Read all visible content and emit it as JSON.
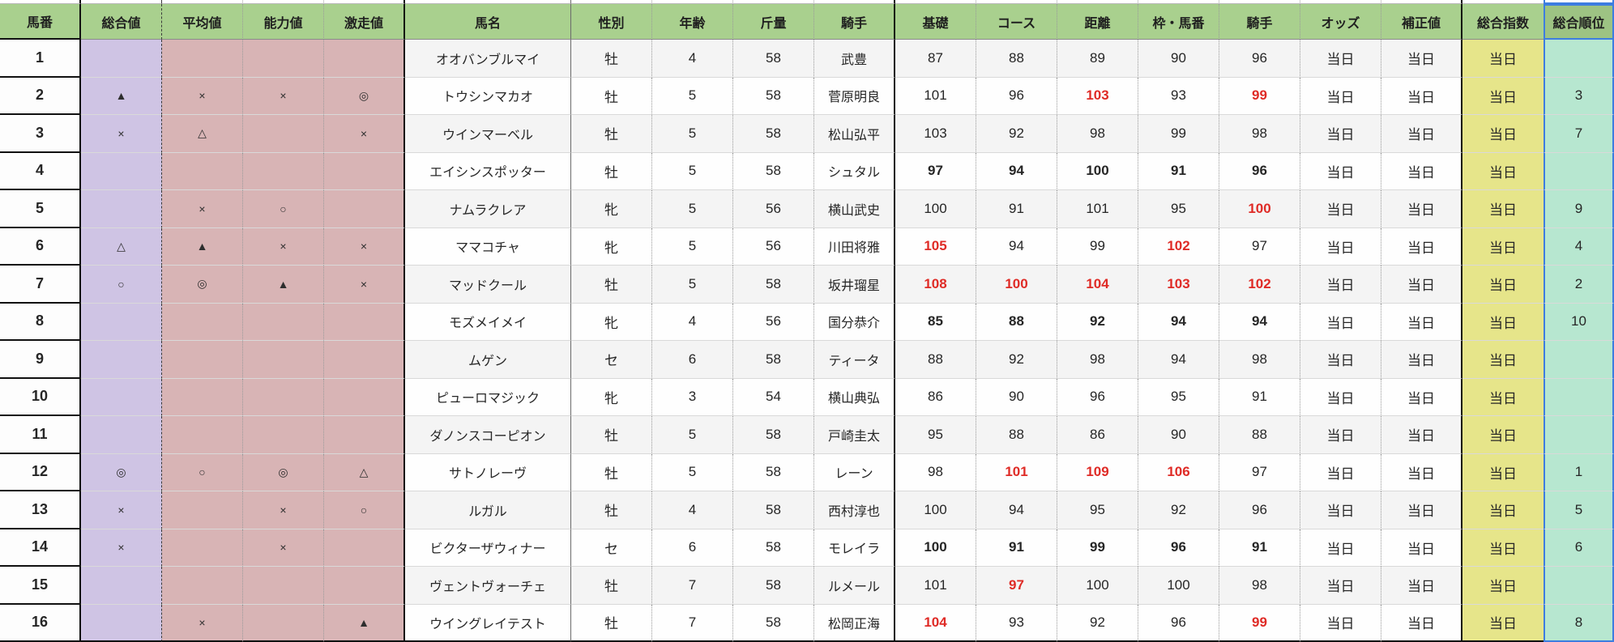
{
  "app": {
    "type": "spreadsheet-horse-racing-rating-table"
  },
  "colors": {
    "header_green": "#a9d08e",
    "selected_header_green": "#9dc383",
    "overall_mark_purple": "#cfc4e4",
    "mark_pink": "#d8b4b5",
    "index_yellow": "#e6e58a",
    "rank_teal": "#b7e7d0",
    "highlight_red": "#df2b26",
    "selection_blue": "#3d7de0"
  },
  "table": {
    "columns": [
      {
        "id": "horse-number",
        "label": "馬番"
      },
      {
        "id": "overall-mark",
        "label": "総合値"
      },
      {
        "id": "average-mark",
        "label": "平均値"
      },
      {
        "id": "ability-mark",
        "label": "能力値"
      },
      {
        "id": "surge-mark",
        "label": "激走値"
      },
      {
        "id": "horse-name",
        "label": "馬名"
      },
      {
        "id": "sex",
        "label": "性別"
      },
      {
        "id": "age",
        "label": "年齢"
      },
      {
        "id": "weight",
        "label": "斤量"
      },
      {
        "id": "jockey",
        "label": "騎手"
      },
      {
        "id": "base-score",
        "label": "基礎"
      },
      {
        "id": "course-score",
        "label": "コース"
      },
      {
        "id": "distance-score",
        "label": "距離"
      },
      {
        "id": "frame-score",
        "label": "枠・馬番"
      },
      {
        "id": "jockey-score",
        "label": "騎手"
      },
      {
        "id": "odds",
        "label": "オッズ"
      },
      {
        "id": "correction",
        "label": "補正値"
      },
      {
        "id": "total-index",
        "label": "総合指数"
      },
      {
        "id": "total-rank",
        "label": "総合順位"
      }
    ],
    "rows": [
      {
        "num": "1",
        "marks": [
          "",
          "",
          "",
          ""
        ],
        "name": "オオバンブルマイ",
        "sex": "牡",
        "age": "4",
        "weight": "58",
        "jockey": "武豊",
        "scores": [
          "87",
          "88",
          "89",
          "90",
          "96"
        ],
        "score_styles": [
          "",
          "",
          "",
          "",
          ""
        ],
        "odds": "当日",
        "correction": "当日",
        "index": "当日",
        "rank": ""
      },
      {
        "num": "2",
        "marks": [
          "▲",
          "×",
          "×",
          "◎"
        ],
        "name": "トウシンマカオ",
        "sex": "牡",
        "age": "5",
        "weight": "58",
        "jockey": "菅原明良",
        "scores": [
          "101",
          "96",
          "103",
          "93",
          "99"
        ],
        "score_styles": [
          "",
          "",
          "red",
          "",
          "red"
        ],
        "odds": "当日",
        "correction": "当日",
        "index": "当日",
        "rank": "3"
      },
      {
        "num": "3",
        "marks": [
          "×",
          "△",
          "",
          "×"
        ],
        "name": "ウインマーベル",
        "sex": "牡",
        "age": "5",
        "weight": "58",
        "jockey": "松山弘平",
        "scores": [
          "103",
          "92",
          "98",
          "99",
          "98"
        ],
        "score_styles": [
          "",
          "",
          "",
          "",
          ""
        ],
        "odds": "当日",
        "correction": "当日",
        "index": "当日",
        "rank": "7"
      },
      {
        "num": "4",
        "marks": [
          "",
          "",
          "",
          ""
        ],
        "name": "エイシンスポッター",
        "sex": "牡",
        "age": "5",
        "weight": "58",
        "jockey": "シュタル",
        "scores": [
          "97",
          "94",
          "100",
          "91",
          "96"
        ],
        "score_styles": [
          "bold",
          "bold",
          "bold",
          "bold",
          "bold"
        ],
        "odds": "当日",
        "correction": "当日",
        "index": "当日",
        "rank": ""
      },
      {
        "num": "5",
        "marks": [
          "",
          "×",
          "○",
          ""
        ],
        "name": "ナムラクレア",
        "sex": "牝",
        "age": "5",
        "weight": "56",
        "jockey": "横山武史",
        "scores": [
          "100",
          "91",
          "101",
          "95",
          "100"
        ],
        "score_styles": [
          "",
          "",
          "",
          "",
          "red"
        ],
        "odds": "当日",
        "correction": "当日",
        "index": "当日",
        "rank": "9"
      },
      {
        "num": "6",
        "marks": [
          "△",
          "▲",
          "×",
          "×"
        ],
        "name": "ママコチャ",
        "sex": "牝",
        "age": "5",
        "weight": "56",
        "jockey": "川田将雅",
        "scores": [
          "105",
          "94",
          "99",
          "102",
          "97"
        ],
        "score_styles": [
          "red",
          "",
          "",
          "red",
          ""
        ],
        "odds": "当日",
        "correction": "当日",
        "index": "当日",
        "rank": "4"
      },
      {
        "num": "7",
        "marks": [
          "○",
          "◎",
          "▲",
          "×"
        ],
        "name": "マッドクール",
        "sex": "牡",
        "age": "5",
        "weight": "58",
        "jockey": "坂井瑠星",
        "scores": [
          "108",
          "100",
          "104",
          "103",
          "102"
        ],
        "score_styles": [
          "red",
          "red",
          "red",
          "red",
          "red"
        ],
        "odds": "当日",
        "correction": "当日",
        "index": "当日",
        "rank": "2"
      },
      {
        "num": "8",
        "marks": [
          "",
          "",
          "",
          ""
        ],
        "name": "モズメイメイ",
        "sex": "牝",
        "age": "4",
        "weight": "56",
        "jockey": "国分恭介",
        "scores": [
          "85",
          "88",
          "92",
          "94",
          "94"
        ],
        "score_styles": [
          "bold",
          "bold",
          "bold",
          "bold",
          "bold"
        ],
        "odds": "当日",
        "correction": "当日",
        "index": "当日",
        "rank": "10"
      },
      {
        "num": "9",
        "marks": [
          "",
          "",
          "",
          ""
        ],
        "name": "ムゲン",
        "sex": "セ",
        "age": "6",
        "weight": "58",
        "jockey": "ティータ",
        "scores": [
          "88",
          "92",
          "98",
          "94",
          "98"
        ],
        "score_styles": [
          "",
          "",
          "",
          "",
          ""
        ],
        "odds": "当日",
        "correction": "当日",
        "index": "当日",
        "rank": ""
      },
      {
        "num": "10",
        "marks": [
          "",
          "",
          "",
          ""
        ],
        "name": "ピューロマジック",
        "sex": "牝",
        "age": "3",
        "weight": "54",
        "jockey": "横山典弘",
        "scores": [
          "86",
          "90",
          "96",
          "95",
          "91"
        ],
        "score_styles": [
          "",
          "",
          "",
          "",
          ""
        ],
        "odds": "当日",
        "correction": "当日",
        "index": "当日",
        "rank": ""
      },
      {
        "num": "11",
        "marks": [
          "",
          "",
          "",
          ""
        ],
        "name": "ダノンスコーピオン",
        "sex": "牡",
        "age": "5",
        "weight": "58",
        "jockey": "戸崎圭太",
        "scores": [
          "95",
          "88",
          "86",
          "90",
          "88"
        ],
        "score_styles": [
          "",
          "",
          "",
          "",
          ""
        ],
        "odds": "当日",
        "correction": "当日",
        "index": "当日",
        "rank": ""
      },
      {
        "num": "12",
        "marks": [
          "◎",
          "○",
          "◎",
          "△"
        ],
        "name": "サトノレーヴ",
        "sex": "牡",
        "age": "5",
        "weight": "58",
        "jockey": "レーン",
        "scores": [
          "98",
          "101",
          "109",
          "106",
          "97"
        ],
        "score_styles": [
          "",
          "red",
          "red",
          "red",
          ""
        ],
        "odds": "当日",
        "correction": "当日",
        "index": "当日",
        "rank": "1"
      },
      {
        "num": "13",
        "marks": [
          "×",
          "",
          "×",
          "○"
        ],
        "name": "ルガル",
        "sex": "牡",
        "age": "4",
        "weight": "58",
        "jockey": "西村淳也",
        "scores": [
          "100",
          "94",
          "95",
          "92",
          "96"
        ],
        "score_styles": [
          "",
          "",
          "",
          "",
          ""
        ],
        "odds": "当日",
        "correction": "当日",
        "index": "当日",
        "rank": "5"
      },
      {
        "num": "14",
        "marks": [
          "×",
          "",
          "×",
          ""
        ],
        "name": "ビクターザウィナー",
        "sex": "セ",
        "age": "6",
        "weight": "58",
        "jockey": "モレイラ",
        "scores": [
          "100",
          "91",
          "99",
          "96",
          "91"
        ],
        "score_styles": [
          "bold",
          "bold",
          "bold",
          "bold",
          "bold"
        ],
        "odds": "当日",
        "correction": "当日",
        "index": "当日",
        "rank": "6"
      },
      {
        "num": "15",
        "marks": [
          "",
          "",
          "",
          ""
        ],
        "name": "ヴェントヴォーチェ",
        "sex": "牡",
        "age": "7",
        "weight": "58",
        "jockey": "ルメール",
        "scores": [
          "101",
          "97",
          "100",
          "100",
          "98"
        ],
        "score_styles": [
          "",
          "red",
          "",
          "",
          ""
        ],
        "odds": "当日",
        "correction": "当日",
        "index": "当日",
        "rank": ""
      },
      {
        "num": "16",
        "marks": [
          "",
          "×",
          "",
          "▲"
        ],
        "name": "ウイングレイテスト",
        "sex": "牡",
        "age": "7",
        "weight": "58",
        "jockey": "松岡正海",
        "scores": [
          "104",
          "93",
          "92",
          "96",
          "99"
        ],
        "score_styles": [
          "red",
          "",
          "",
          "",
          "red"
        ],
        "odds": "当日",
        "correction": "当日",
        "index": "当日",
        "rank": "8"
      }
    ]
  }
}
